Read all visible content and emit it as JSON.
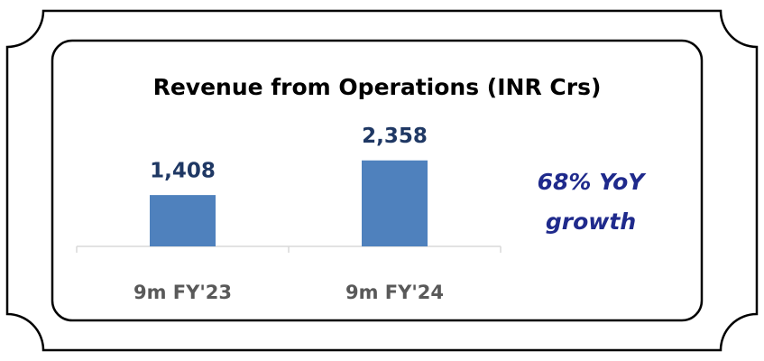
{
  "chart_data": {
    "type": "bar",
    "title": "Revenue from Operations (INR Crs)",
    "categories": [
      "9m FY'23",
      "9m FY'24"
    ],
    "values": [
      1408,
      2358
    ],
    "value_labels": [
      "1,408",
      "2,358"
    ],
    "color": "#4f81bd",
    "ylim": [
      0,
      2500
    ],
    "annotation": "68% YoY growth"
  }
}
